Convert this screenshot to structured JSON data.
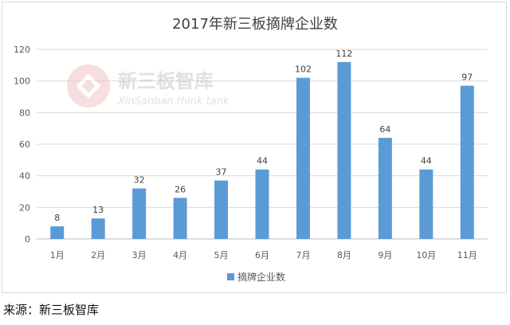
{
  "chart_data": {
    "type": "bar",
    "title": "2017年新三板摘牌企业数",
    "categories": [
      "1月",
      "2月",
      "3月",
      "4月",
      "5月",
      "6月",
      "7月",
      "8月",
      "9月",
      "10月",
      "11月"
    ],
    "series": [
      {
        "name": "摘牌企业数",
        "values": [
          8,
          13,
          32,
          26,
          37,
          44,
          102,
          112,
          64,
          44,
          97
        ]
      }
    ],
    "ylim": [
      0,
      120
    ],
    "yticks": [
      0,
      20,
      40,
      60,
      80,
      100,
      120
    ],
    "grid": true,
    "legend_position": "bottom",
    "bar_color": "#5b9bd5"
  },
  "watermark": {
    "name_cn": "新三板智库",
    "name_en": "XinSanban think tank"
  },
  "source": "来源：新三板智库"
}
